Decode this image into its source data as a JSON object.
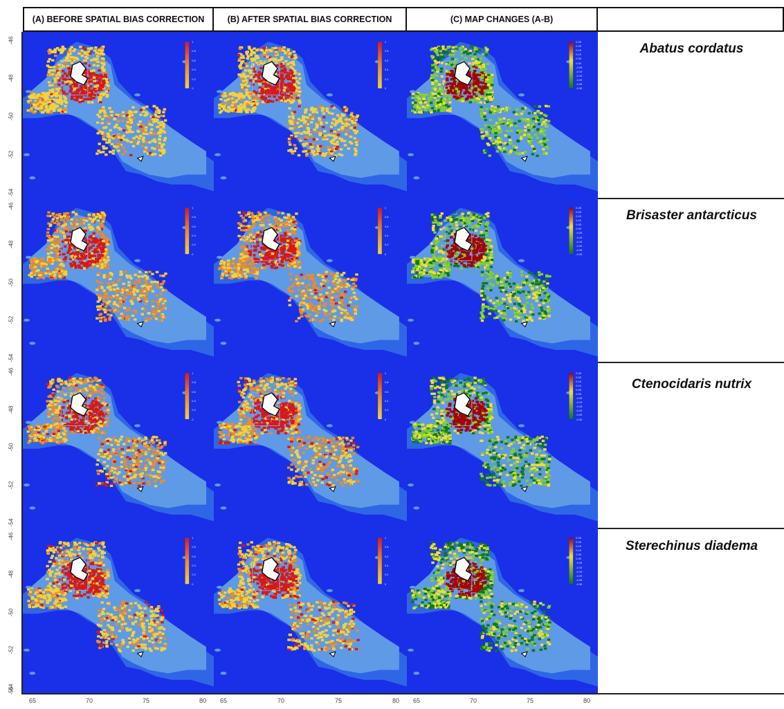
{
  "columns": [
    "(A) BEFORE SPATIAL BIAS CORRECTION",
    "(B) AFTER SPATIAL BIAS CORRECTION",
    "(C) MAP CHANGES (A-B)"
  ],
  "species": [
    "Abatus cordatus",
    "Brisaster antarcticus",
    "Ctenocidaris nutrix",
    "Sterechinus diadema"
  ],
  "y_ticks": [
    "-46",
    "-48",
    "-50",
    "-52",
    "-54",
    "-56"
  ],
  "x_ticks": [
    "65",
    "70",
    "75",
    "80"
  ],
  "legend_abs": [
    "1",
    "0.8",
    "0.6",
    "0.4",
    "0.2",
    "0"
  ],
  "legend_diff": [
    "0.25",
    "0.20",
    "0.15",
    "0.10",
    "0.05",
    "0.00",
    "-0.05",
    "-0.10",
    "-0.15",
    "-0.20",
    "-0.25",
    "-0.30"
  ],
  "colors": {
    "ocean_deep": "#1a2fe8",
    "ocean_mid": "#2f66e6",
    "shelf": "#5f9ae6",
    "prob_low": "#f4d23a",
    "prob_mid": "#f08a22",
    "prob_high": "#d81818",
    "diff_pos": "#a80000",
    "diff_zero": "#f0e030",
    "diff_neg": "#0c7a12"
  }
}
